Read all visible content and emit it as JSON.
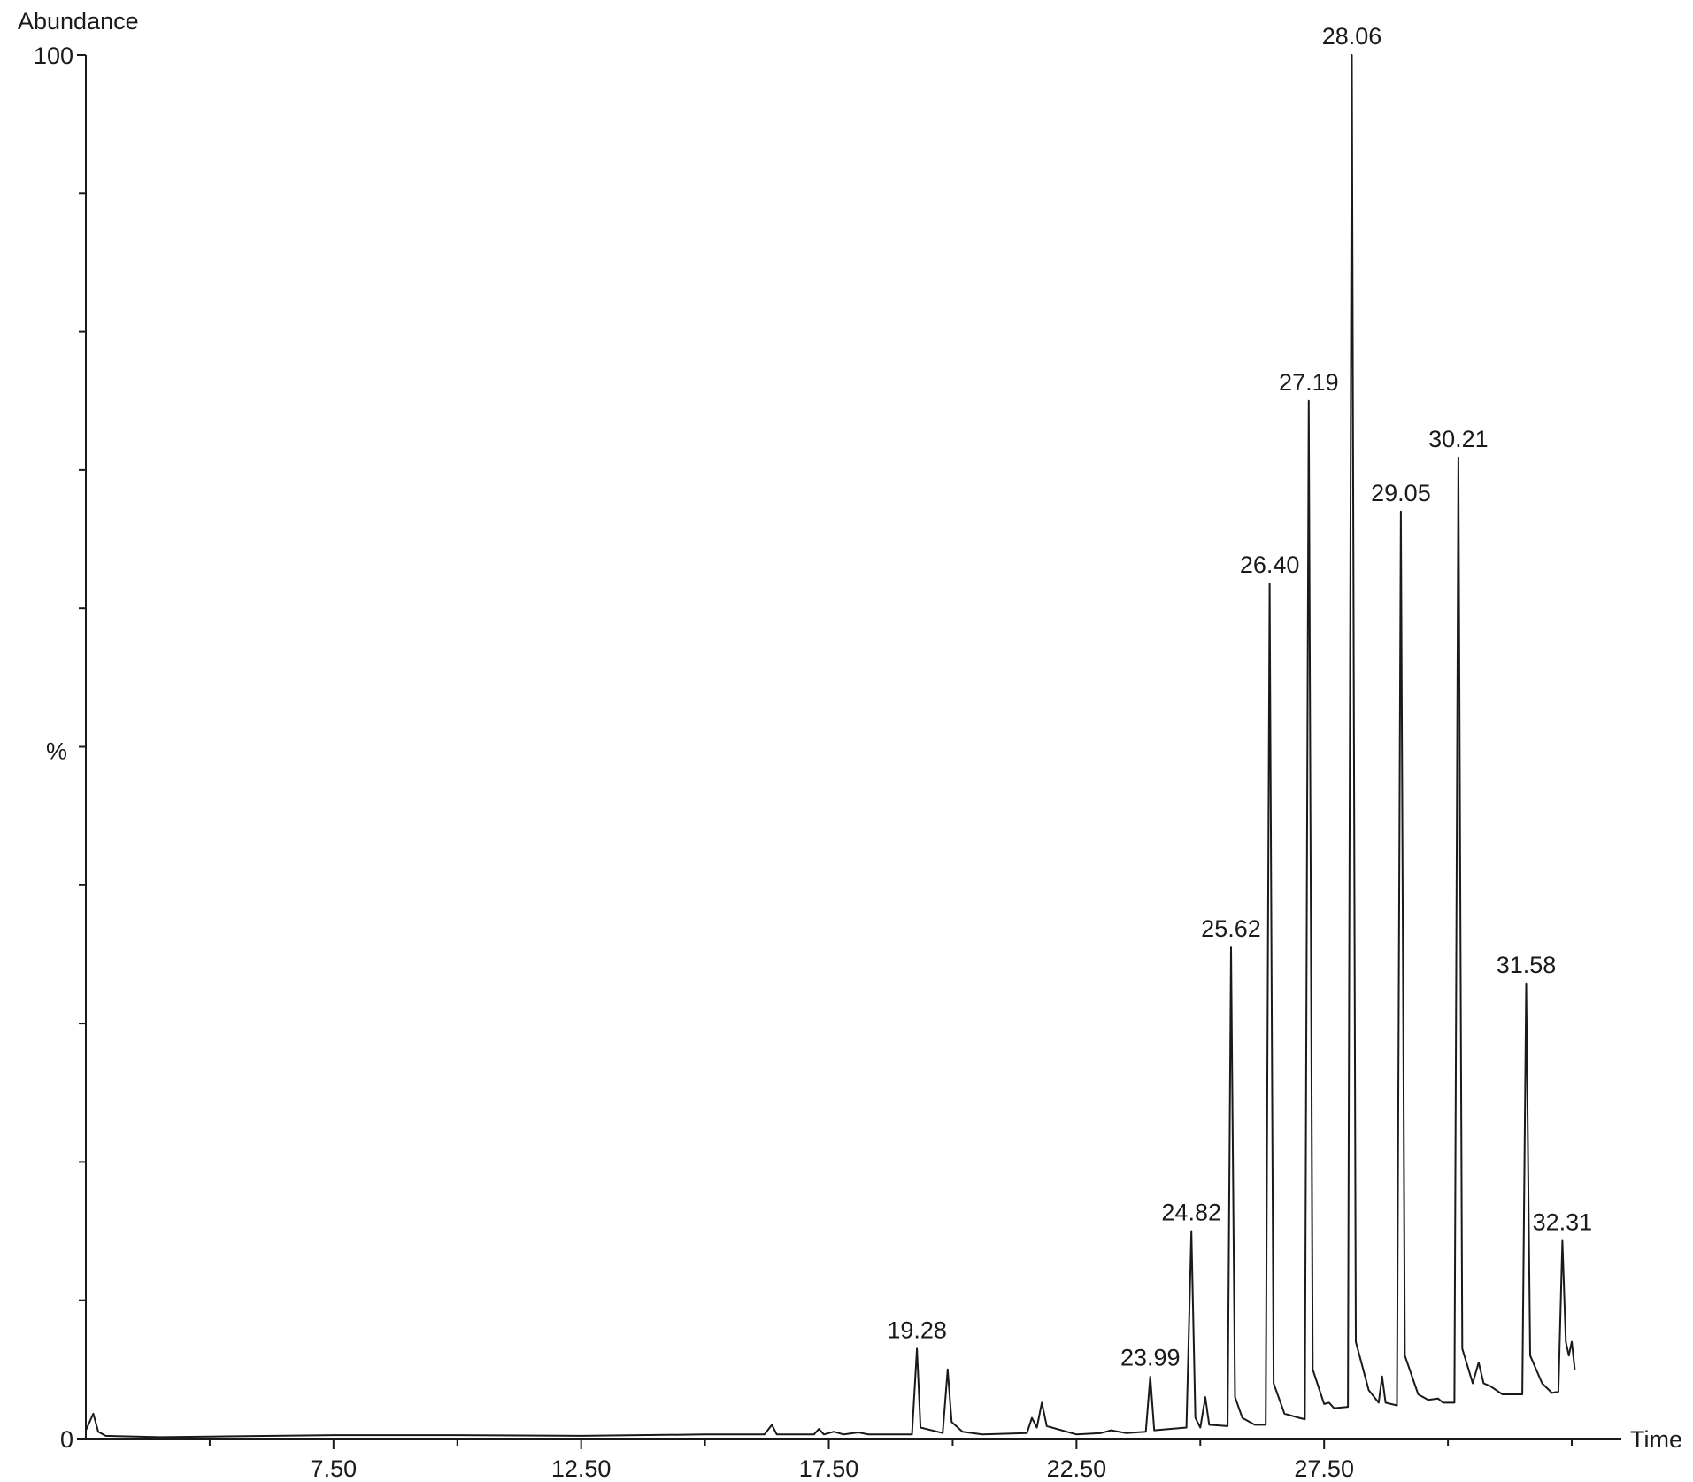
{
  "chart_data": {
    "type": "line",
    "title": "",
    "ylabel_top": "Abundance",
    "ylabel_mid": "%",
    "xlabel": "Time",
    "xlim": [
      2.5,
      33.5
    ],
    "ylim": [
      0,
      100
    ],
    "y_tick_labels": [
      {
        "value": 100,
        "label": "100"
      },
      {
        "value": 0,
        "label": "0"
      }
    ],
    "y_minor_ticks": [
      10,
      20,
      30,
      40,
      60,
      70,
      80,
      90
    ],
    "x_tick_labels": [
      "7.50",
      "12.50",
      "17.50",
      "22.50",
      "27.50"
    ],
    "x_tick_values": [
      7.5,
      12.5,
      17.5,
      22.5,
      27.5
    ],
    "x_minor_ticks": [
      5,
      10,
      15,
      20,
      25,
      30,
      32.5
    ],
    "peaks": [
      {
        "x": 19.28,
        "y": 6.5,
        "label": "19.28"
      },
      {
        "x": 23.99,
        "y": 4.5,
        "label": "23.99"
      },
      {
        "x": 24.82,
        "y": 15.0,
        "label": "24.82"
      },
      {
        "x": 25.62,
        "y": 35.5,
        "label": "25.62"
      },
      {
        "x": 26.4,
        "y": 61.8,
        "label": "26.40"
      },
      {
        "x": 27.19,
        "y": 75.0,
        "label": "27.19"
      },
      {
        "x": 28.06,
        "y": 100.0,
        "label": "28.06"
      },
      {
        "x": 29.05,
        "y": 67.0,
        "label": "29.05"
      },
      {
        "x": 30.21,
        "y": 70.9,
        "label": "30.21"
      },
      {
        "x": 31.58,
        "y": 32.9,
        "label": "31.58"
      },
      {
        "x": 32.31,
        "y": 14.3,
        "label": "32.31"
      }
    ],
    "series": [
      {
        "values": [
          [
            2.5,
            0.6
          ],
          [
            2.65,
            1.8
          ],
          [
            2.75,
            0.5
          ],
          [
            2.9,
            0.2
          ],
          [
            4.0,
            0.1
          ],
          [
            5.0,
            0.15
          ],
          [
            7.5,
            0.25
          ],
          [
            10.0,
            0.25
          ],
          [
            12.5,
            0.2
          ],
          [
            15.0,
            0.3
          ],
          [
            16.2,
            0.3
          ],
          [
            16.35,
            1.0
          ],
          [
            16.45,
            0.3
          ],
          [
            17.2,
            0.3
          ],
          [
            17.3,
            0.7
          ],
          [
            17.4,
            0.3
          ],
          [
            17.6,
            0.5
          ],
          [
            17.8,
            0.3
          ],
          [
            18.1,
            0.45
          ],
          [
            18.3,
            0.3
          ],
          [
            19.18,
            0.3
          ],
          [
            19.28,
            6.5
          ],
          [
            19.35,
            0.8
          ],
          [
            19.8,
            0.4
          ],
          [
            19.9,
            5.0
          ],
          [
            19.98,
            1.2
          ],
          [
            20.2,
            0.5
          ],
          [
            20.6,
            0.3
          ],
          [
            21.5,
            0.4
          ],
          [
            21.6,
            1.5
          ],
          [
            21.7,
            0.8
          ],
          [
            21.8,
            2.6
          ],
          [
            21.9,
            0.9
          ],
          [
            22.3,
            0.5
          ],
          [
            22.5,
            0.3
          ],
          [
            23.0,
            0.4
          ],
          [
            23.2,
            0.6
          ],
          [
            23.5,
            0.4
          ],
          [
            23.9,
            0.5
          ],
          [
            23.99,
            4.5
          ],
          [
            24.07,
            0.6
          ],
          [
            24.72,
            0.8
          ],
          [
            24.82,
            15.0
          ],
          [
            24.9,
            1.5
          ],
          [
            25.0,
            0.8
          ],
          [
            25.1,
            3.0
          ],
          [
            25.18,
            1.0
          ],
          [
            25.55,
            0.9
          ],
          [
            25.62,
            35.5
          ],
          [
            25.7,
            3.0
          ],
          [
            25.85,
            1.5
          ],
          [
            26.1,
            1.0
          ],
          [
            26.32,
            1.0
          ],
          [
            26.4,
            61.8
          ],
          [
            26.48,
            4.0
          ],
          [
            26.7,
            1.8
          ],
          [
            27.0,
            1.5
          ],
          [
            27.11,
            1.4
          ],
          [
            27.19,
            75.0
          ],
          [
            27.27,
            5.0
          ],
          [
            27.5,
            2.5
          ],
          [
            27.6,
            2.6
          ],
          [
            27.7,
            2.2
          ],
          [
            27.98,
            2.3
          ],
          [
            28.06,
            100.0
          ],
          [
            28.14,
            7.0
          ],
          [
            28.4,
            3.5
          ],
          [
            28.6,
            2.6
          ],
          [
            28.67,
            4.5
          ],
          [
            28.74,
            2.6
          ],
          [
            28.97,
            2.4
          ],
          [
            29.05,
            67.0
          ],
          [
            29.13,
            6.0
          ],
          [
            29.4,
            3.2
          ],
          [
            29.6,
            2.8
          ],
          [
            29.8,
            2.9
          ],
          [
            29.9,
            2.6
          ],
          [
            30.13,
            2.6
          ],
          [
            30.21,
            70.9
          ],
          [
            30.29,
            6.5
          ],
          [
            30.5,
            4.0
          ],
          [
            30.62,
            5.5
          ],
          [
            30.72,
            4.0
          ],
          [
            30.85,
            3.8
          ],
          [
            31.1,
            3.2
          ],
          [
            31.5,
            3.2
          ],
          [
            31.58,
            32.9
          ],
          [
            31.66,
            6.0
          ],
          [
            31.9,
            4.0
          ],
          [
            32.1,
            3.3
          ],
          [
            32.23,
            3.4
          ],
          [
            32.31,
            14.3
          ],
          [
            32.38,
            7.0
          ],
          [
            32.44,
            6.0
          ],
          [
            32.5,
            7.0
          ],
          [
            32.56,
            5.0
          ]
        ]
      }
    ]
  }
}
